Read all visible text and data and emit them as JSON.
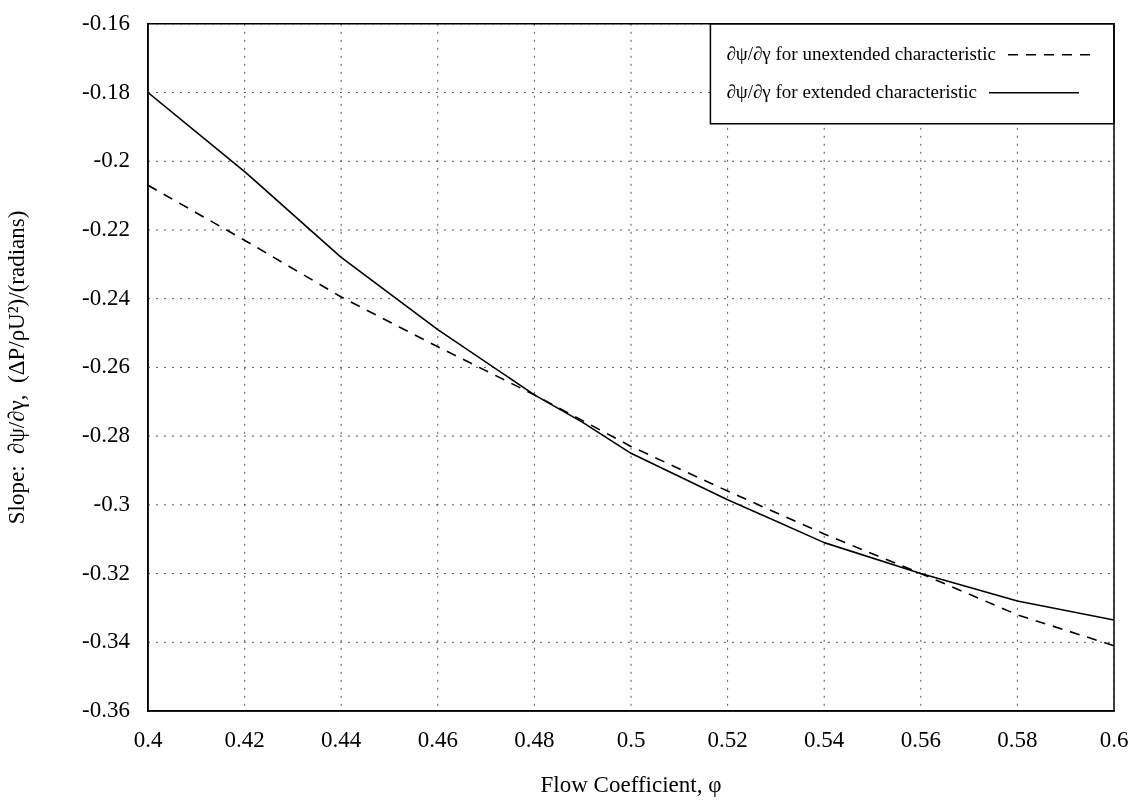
{
  "chart_data": {
    "type": "line",
    "xlabel": "Flow Coefficient, φ",
    "ylabel": "Slope:  ∂ψ/∂γ,  (ΔP/ρU²)/(radians)",
    "x": [
      0.4,
      0.42,
      0.44,
      0.46,
      0.48,
      0.49,
      0.5,
      0.52,
      0.54,
      0.56,
      0.58,
      0.6
    ],
    "series": [
      {
        "name": "∂ψ/∂γ for unextended characteristic",
        "color": "#000000",
        "line_style": "dashed",
        "values": [
          -0.207,
          -0.223,
          -0.2395,
          -0.254,
          -0.268,
          -0.2755,
          -0.283,
          -0.296,
          -0.3085,
          -0.32,
          -0.332,
          -0.341
        ]
      },
      {
        "name": "∂ψ/∂γ for extended characteristic",
        "color": "#000000",
        "line_style": "solid",
        "values": [
          -0.18,
          -0.203,
          -0.228,
          -0.249,
          -0.268,
          -0.276,
          -0.285,
          -0.2985,
          -0.311,
          -0.32,
          -0.328,
          -0.3335
        ]
      }
    ],
    "xlim": [
      0.4,
      0.6
    ],
    "xticks": [
      0.4,
      0.42,
      0.44,
      0.46,
      0.48,
      0.5,
      0.52,
      0.54,
      0.56,
      0.58,
      0.6
    ],
    "ylim": [
      -0.36,
      -0.16
    ],
    "yticks": [
      -0.36,
      -0.34,
      -0.32,
      -0.3,
      -0.28,
      -0.26,
      -0.24,
      -0.22,
      -0.2,
      -0.18,
      -0.16
    ],
    "grid": true,
    "legend": "top right",
    "marker": "none"
  }
}
